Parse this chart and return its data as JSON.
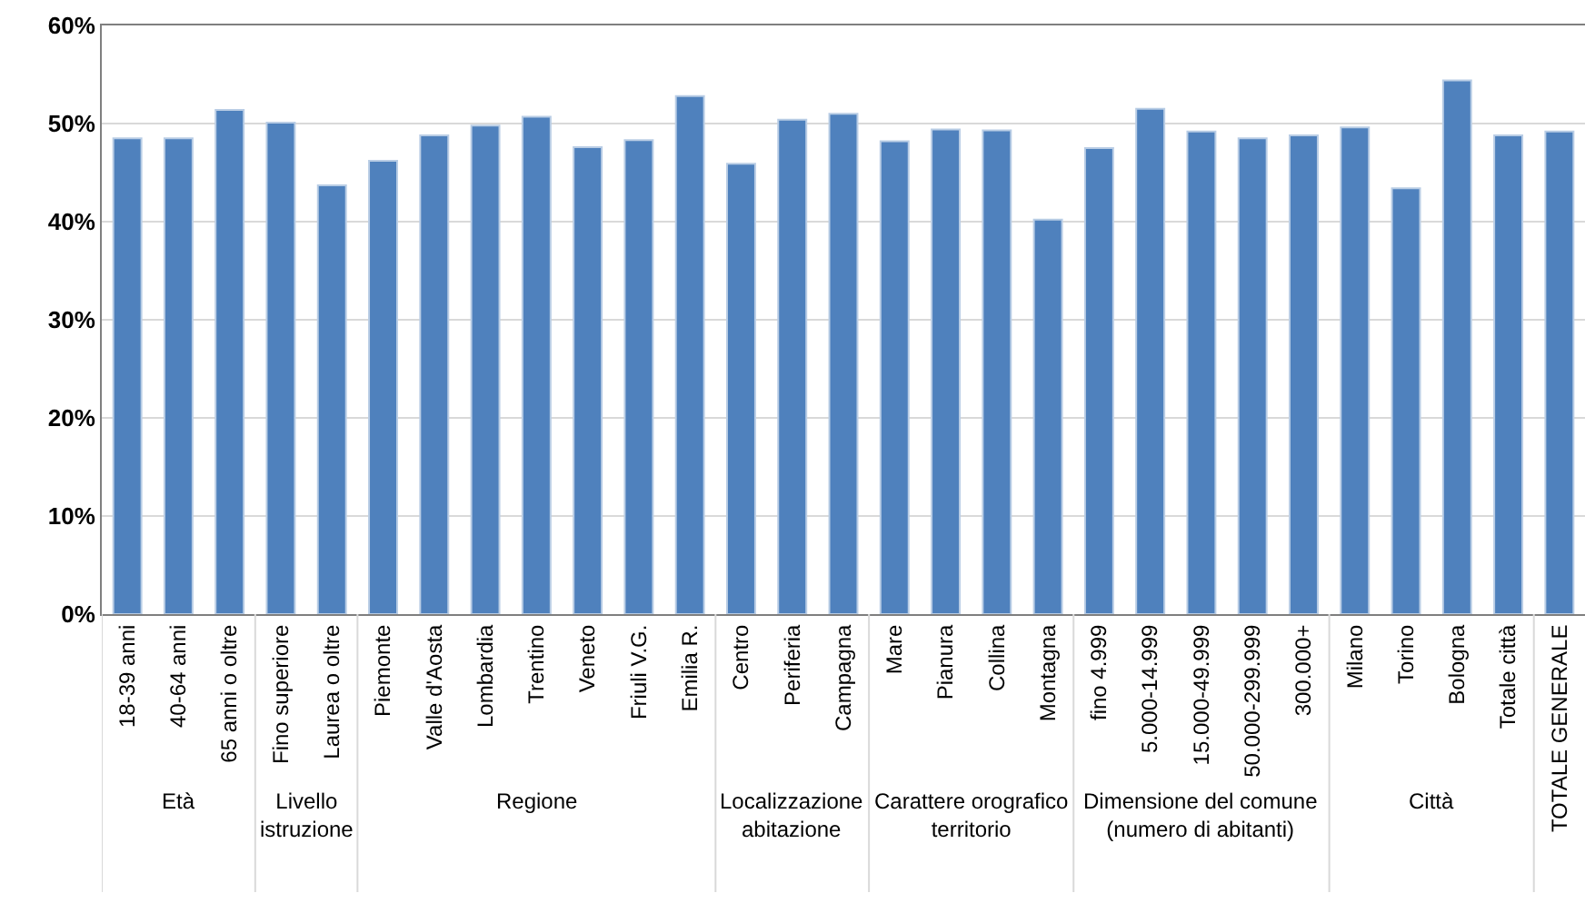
{
  "chart_data": {
    "type": "bar",
    "categories": [
      "18-39 anni",
      "40-64 anni",
      "65 anni o oltre",
      "Fino superiore",
      "Laurea o oltre",
      "Piemonte",
      "Valle d'Aosta",
      "Lombardia",
      "Trentino",
      "Veneto",
      "Friuli V.G.",
      "Emilia R.",
      "Centro",
      "Periferia",
      "Campagna",
      "Mare",
      "Pianura",
      "Collina",
      "Montagna",
      "fino 4.999",
      "5.000-14.999",
      "15.000-49.999",
      "50.000-299.999",
      "300.000+",
      "Milano",
      "Torino",
      "Bologna",
      "Totale città",
      "TOTALE GENERALE"
    ],
    "values": [
      48.5,
      48.5,
      51.4,
      50.1,
      43.7,
      46.2,
      48.8,
      49.8,
      50.7,
      47.6,
      48.3,
      52.8,
      45.9,
      50.4,
      51.0,
      48.2,
      49.4,
      49.3,
      40.2,
      47.5,
      51.5,
      49.2,
      48.5,
      48.8,
      49.6,
      43.4,
      54.4,
      48.8,
      49.2
    ],
    "color": "#4f81bd",
    "ylim": [
      0,
      60
    ],
    "yticks": [
      {
        "value": 0,
        "label": "0%"
      },
      {
        "value": 10,
        "label": "10%"
      },
      {
        "value": 20,
        "label": "20%"
      },
      {
        "value": 30,
        "label": "30%"
      },
      {
        "value": 40,
        "label": "40%"
      },
      {
        "value": 50,
        "label": "50%"
      },
      {
        "value": 60,
        "label": "60%"
      }
    ],
    "grid": "y",
    "annotations": [
      "Età",
      "Livello istruzione",
      "Regione",
      "Localizzazione abitazione",
      "Carattere orografico territorio",
      "Dimensione del comune (numero di abitanti)",
      "Città"
    ]
  }
}
